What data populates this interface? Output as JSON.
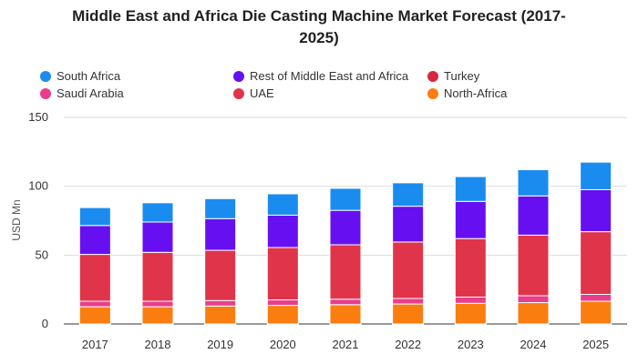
{
  "chart_data": {
    "type": "bar",
    "stacked": true,
    "title_lines": [
      "Middle East and Africa Die Casting Machine Market Forecast (2017-",
      "2025)"
    ],
    "xlabel": "",
    "ylabel": "USD Mn",
    "ylim": [
      0,
      150
    ],
    "yticks": [
      "0",
      "50",
      "100",
      "150"
    ],
    "grid": true,
    "legend_position": "top",
    "categories": [
      "2017",
      "2018",
      "2019",
      "2020",
      "2021",
      "2022",
      "2023",
      "2024",
      "2025"
    ],
    "series": [
      {
        "name": "North-Africa",
        "color": "#fa7d0f",
        "values": [
          12.5,
          12.5,
          13,
          13.5,
          14,
          14.5,
          15,
          15.5,
          16.5
        ]
      },
      {
        "name": "Saudi Arabia",
        "color": "#e83e8c",
        "values": [
          4,
          4,
          4,
          4,
          4,
          4,
          4.5,
          5,
          5
        ]
      },
      {
        "name": "UAE",
        "color": "#e0344a",
        "values": [
          34,
          35.5,
          36.5,
          38,
          39.5,
          41,
          42.5,
          44,
          45.5
        ]
      },
      {
        "name": "Turkey",
        "color": "#d7263d",
        "values": [
          0,
          0,
          0,
          0,
          0,
          0,
          0,
          0,
          0
        ]
      },
      {
        "name": "Rest of Middle East and Africa",
        "color": "#6610f2",
        "values": [
          21,
          22,
          23,
          23.5,
          25,
          26,
          27,
          28.5,
          30.5
        ]
      },
      {
        "name": "South Africa",
        "color": "#1a8cf0",
        "values": [
          13,
          14,
          14.5,
          15.5,
          16,
          17,
          18,
          19,
          20
        ]
      }
    ],
    "legend_order": [
      "South Africa",
      "Rest of Middle East and Africa",
      "Turkey",
      "Saudi Arabia",
      "UAE",
      "North-Africa"
    ]
  }
}
